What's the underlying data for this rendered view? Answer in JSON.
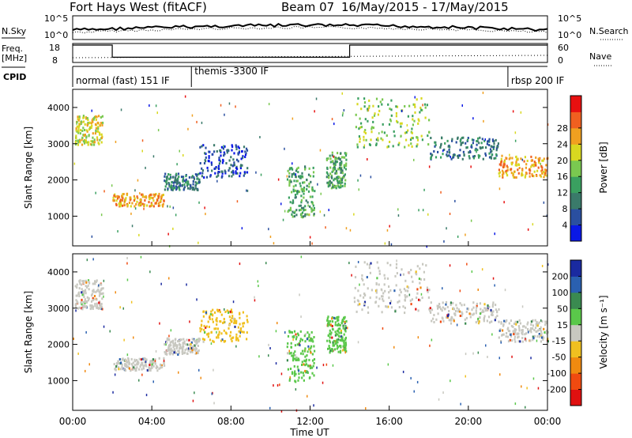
{
  "header": {
    "station": "Fort Hays West (fitACF)",
    "beam": "Beam 07",
    "date_range": "16/May/2015 - 17/May/2015"
  },
  "top_panels": {
    "nsky_label": "N.Sky",
    "nsearch_label": "N.Search",
    "freq_label": "Freq.",
    "freq_unit": "[MHz]",
    "nave_label": "Nave",
    "cpid_label": "CPID",
    "noise_left_ticks": [
      "10^5",
      "10^0"
    ],
    "noise_right_ticks": [
      "10^5",
      "10^0"
    ],
    "freq_ticks": [
      "18",
      "8"
    ],
    "nave_ticks": [
      "60",
      "0"
    ],
    "cpid_segments": [
      {
        "label": "normal (fast) 151 IF",
        "start": 0,
        "end": 6
      },
      {
        "label": "themis -3300 IF",
        "start": 6,
        "end": 22
      },
      {
        "label": "rbsp 200 IF",
        "start": 22,
        "end": 24
      }
    ],
    "freq_steps": [
      {
        "start": 0,
        "end": 2,
        "mhz": 18
      },
      {
        "start": 2,
        "end": 14,
        "mhz": 11
      },
      {
        "start": 14,
        "end": 24,
        "mhz": 18
      }
    ]
  },
  "x_axis": {
    "label": "Time UT",
    "ticks": [
      "00:00",
      "04:00",
      "08:00",
      "12:00",
      "16:00",
      "20:00",
      "00:00"
    ]
  },
  "chart_data": [
    {
      "type": "heatmap",
      "panel": "power",
      "ylabel": "Slant Range [km]",
      "xlim": [
        0,
        24
      ],
      "ylim": [
        180,
        4500
      ],
      "yticks": [
        1000,
        2000,
        3000,
        4000
      ],
      "colorbar": {
        "label": "Power [dB]",
        "ticks": [
          "4",
          "8",
          "12",
          "16",
          "20",
          "24",
          "28"
        ],
        "colors": [
          "#0a18e6",
          "#2a4fa0",
          "#3a7a6a",
          "#3aa060",
          "#7ac850",
          "#d8d820",
          "#f0a020",
          "#f06020",
          "#e81010"
        ]
      },
      "regions": [
        {
          "t0": 0.1,
          "t1": 1.5,
          "r0": 3000,
          "r1": 3800,
          "level": 5
        },
        {
          "t0": 2.0,
          "t1": 4.6,
          "r0": 1300,
          "r1": 1650,
          "level": 6
        },
        {
          "t0": 4.6,
          "t1": 6.4,
          "r0": 1750,
          "r1": 2200,
          "level": 2
        },
        {
          "t0": 6.4,
          "t1": 8.8,
          "r0": 2100,
          "r1": 3000,
          "level": 1
        },
        {
          "t0": 10.8,
          "t1": 12.2,
          "r0": 1000,
          "r1": 2400,
          "level": 3
        },
        {
          "t0": 12.8,
          "t1": 13.8,
          "r0": 1800,
          "r1": 2800,
          "level": 3
        },
        {
          "t0": 14.2,
          "t1": 18.0,
          "r0": 2900,
          "r1": 4300,
          "level": 4
        },
        {
          "t0": 18.0,
          "t1": 21.5,
          "r0": 2600,
          "r1": 3200,
          "level": 2
        },
        {
          "t0": 21.5,
          "t1": 24.0,
          "r0": 2100,
          "r1": 2700,
          "level": 6
        }
      ]
    },
    {
      "type": "heatmap",
      "panel": "velocity",
      "ylabel": "Slant Range [km]",
      "xlim": [
        0,
        24
      ],
      "ylim": [
        180,
        4500
      ],
      "yticks": [
        1000,
        2000,
        3000,
        4000
      ],
      "colorbar": {
        "label": "Velocity [m s⁻¹]",
        "ticks": [
          "200",
          "100",
          "50",
          "15",
          "-15",
          "-50",
          "-100",
          "-200"
        ],
        "colors": [
          "#1a2aa0",
          "#2a60b0",
          "#3a8a50",
          "#5ac84a",
          "#c8c8c0",
          "#f0c020",
          "#f08a10",
          "#f04a10",
          "#e01010"
        ]
      },
      "regions": [
        {
          "t0": 0.1,
          "t1": 1.5,
          "r0": 3000,
          "r1": 3800,
          "color": "#c8c8c0"
        },
        {
          "t0": 2.0,
          "t1": 4.6,
          "r0": 1300,
          "r1": 1650,
          "color": "#c8c8c0"
        },
        {
          "t0": 4.6,
          "t1": 6.4,
          "r0": 1750,
          "r1": 2200,
          "color": "#c8c8c0"
        },
        {
          "t0": 6.4,
          "t1": 8.8,
          "r0": 2100,
          "r1": 3000,
          "color": "#f0c020"
        },
        {
          "t0": 10.8,
          "t1": 12.2,
          "r0": 1000,
          "r1": 2400,
          "color": "#5ac84a"
        },
        {
          "t0": 12.8,
          "t1": 13.8,
          "r0": 1800,
          "r1": 2800,
          "color": "#5ac84a"
        },
        {
          "t0": 14.2,
          "t1": 18.0,
          "r0": 2900,
          "r1": 4300,
          "color": "#c8c8c0"
        },
        {
          "t0": 18.0,
          "t1": 21.5,
          "r0": 2600,
          "r1": 3200,
          "color": "#c8c8c0"
        },
        {
          "t0": 21.5,
          "t1": 24.0,
          "r0": 2100,
          "r1": 2700,
          "color": "#c8c8c0"
        }
      ]
    }
  ]
}
